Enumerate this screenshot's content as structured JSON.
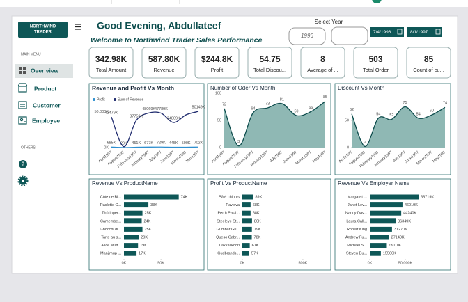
{
  "sidebar": {
    "logo_lines": [
      "NORTHWIND",
      "TRADER"
    ],
    "main_menu": "MAIN MENU",
    "items": [
      "Over view",
      "Product",
      "Customer",
      "Employee"
    ],
    "others": "OTHERS"
  },
  "header": {
    "greeting": "Good Evening, Abdullateef",
    "welcome": "Welcome to Northwind Trader Sales Performance",
    "select_year": "Select Year",
    "year": "1996",
    "start_date": "7/4/1996",
    "end_date": "8/1/1997"
  },
  "cards": [
    {
      "value": "342.98K",
      "label": "Total Amount"
    },
    {
      "value": "587.80K",
      "label": "Revenue"
    },
    {
      "value": "$244.8K",
      "label": "Profit"
    },
    {
      "value": "54.75",
      "label": "Total Discou..."
    },
    {
      "value": "8",
      "label": "Average of ..."
    },
    {
      "value": "503",
      "label": "Total Order"
    },
    {
      "value": "85",
      "label": "Count of cu..."
    }
  ],
  "chart_data": [
    {
      "type": "line",
      "title": "Revenue and Profit Vs Month",
      "categories": [
        "April1997",
        "August1997",
        "February1997",
        "January1997",
        "July1997",
        "June1997",
        "March1997",
        "May1997"
      ],
      "series": [
        {
          "name": "Profit",
          "color": "#2e8fcf",
          "values": [
            685,
            29,
            451,
            677,
            729,
            445,
            500,
            702
          ],
          "value_labels": [
            "685K",
            "29K",
            "451K",
            "677K",
            "729K",
            "445K",
            "500K",
            "702K"
          ]
        },
        {
          "name": "Sum of Revenue",
          "color": "#1f2b6e",
          "values": [
            42479,
            1200,
            37759,
            48069,
            47789,
            34809,
            45500,
            50149
          ],
          "value_labels": [
            "42479K",
            null,
            "37759K",
            "48069K",
            "47789K",
            "34809K",
            null,
            "50149K"
          ]
        }
      ],
      "ylim": [
        0,
        60000
      ],
      "yticks": [
        {
          "value": 0,
          "label": "0K"
        },
        {
          "value": 50000,
          "label": "50,000K"
        }
      ]
    },
    {
      "type": "area",
      "title": "Number of Oder Vs Month",
      "categories": [
        "April1997",
        "August1997",
        "February1997",
        "January1997",
        "July1997",
        "June1997",
        "March1997",
        "May1997"
      ],
      "values": [
        72,
        3,
        64,
        73,
        81,
        59,
        66,
        85
      ],
      "color": "#8fb8b4",
      "ylim": [
        0,
        100
      ],
      "yticks": [
        0,
        50,
        100
      ]
    },
    {
      "type": "area",
      "title": "Discount Vs Month",
      "categories": [
        "April1997",
        "August1997",
        "February1997",
        "January1997",
        "July1997",
        "June1997",
        "March1997",
        "May1997"
      ],
      "values": [
        62,
        2,
        54,
        52,
        75,
        54,
        60,
        74
      ],
      "color": "#8fb8b4",
      "ylim": [
        0,
        100
      ],
      "yticks": [
        0,
        50
      ]
    },
    {
      "type": "bar",
      "orientation": "horizontal",
      "title": "Revenue Vs ProductName",
      "categories": [
        "Côte de Bl...",
        "Raclette C...",
        "Thüringer...",
        "Camembe...",
        "Gnocchi di...",
        "Tarte au s...",
        "Alice Mutt...",
        "Manjimup ..."
      ],
      "values": [
        74,
        33,
        25,
        24,
        25,
        20,
        19,
        17
      ],
      "value_labels": [
        "74K",
        "33K",
        "25K",
        "24K",
        "25K",
        "20K",
        "19K",
        "17K"
      ],
      "color": "#0e5757",
      "xlim": [
        0,
        95
      ],
      "xticks": [
        {
          "value": 0,
          "label": "0K"
        },
        {
          "value": 50,
          "label": "50K"
        }
      ]
    },
    {
      "type": "bar",
      "orientation": "horizontal",
      "title": "Profit Vs ProductName",
      "categories": [
        "Pâté chinois",
        "Pavlova",
        "Perth Pasti...",
        "Steeleye St...",
        "Gumbär Gu...",
        "Queso Cabr...",
        "Lakkalikööri",
        "Gudbrands..."
      ],
      "values": [
        89,
        68,
        68,
        80,
        79,
        78,
        61,
        57
      ],
      "value_labels": [
        "89K",
        "68K",
        "68K",
        "80K",
        "79K",
        "78K",
        "61K",
        "57K"
      ],
      "color": "#0e5757",
      "xlim": [
        0,
        650
      ],
      "xticks": [
        {
          "value": 0,
          "label": "0K"
        },
        {
          "value": 500,
          "label": "500K"
        }
      ]
    },
    {
      "type": "bar",
      "orientation": "horizontal",
      "title": "Revenue Vs Employer Name",
      "categories": [
        "Margaret ...",
        "Janet Lev...",
        "Nancy Dav...",
        "Laura Call...",
        "Robert King",
        "Andrew Fu...",
        "Michael S...",
        "Steven Bu..."
      ],
      "values": [
        68719,
        46019,
        44240,
        36349,
        31270,
        27140,
        23010,
        15560
      ],
      "value_labels": [
        "68719K",
        "46019K",
        "44240K",
        "36349K",
        "31270K",
        "27140K",
        "23010K",
        "15560K"
      ],
      "color": "#0e5757",
      "xlim": [
        0,
        100000
      ],
      "xticks": [
        {
          "value": 0,
          "label": "0K"
        },
        {
          "value": 50000,
          "label": "50,000K"
        }
      ]
    }
  ]
}
